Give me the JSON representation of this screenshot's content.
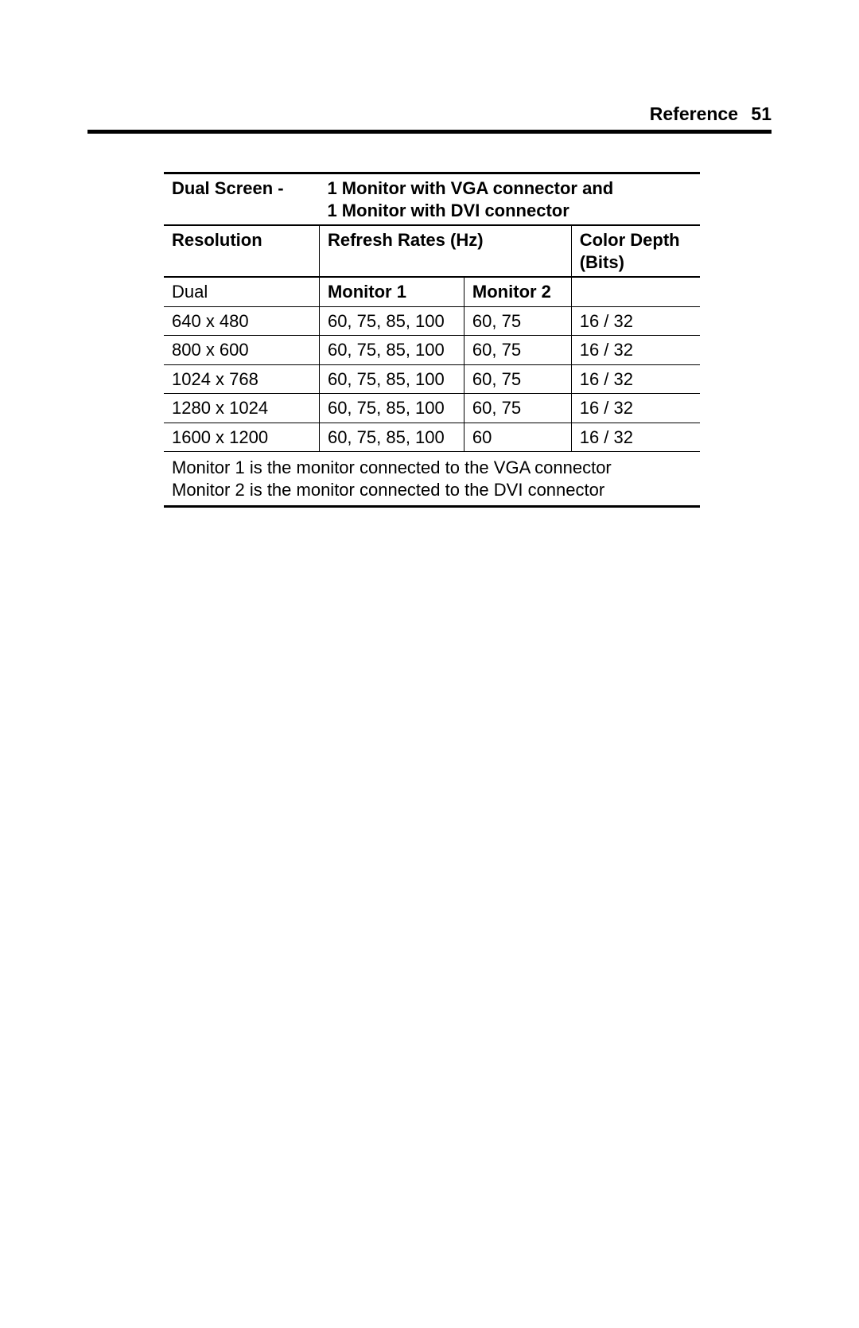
{
  "header": {
    "section": "Reference",
    "page_number": "51"
  },
  "table": {
    "type": "table",
    "title_left": "Dual Screen -",
    "title_right_line1": "1 Monitor with VGA connector and",
    "title_right_line2": "1 Monitor with DVI connector",
    "columns": {
      "resolution": "Resolution",
      "refresh_rates": "Refresh Rates (Hz)",
      "color_depth_line1": "Color Depth",
      "color_depth_line2": "(Bits)"
    },
    "subheader": {
      "dual": "Dual",
      "monitor1": "Monitor 1",
      "monitor2": "Monitor 2"
    },
    "rows": [
      {
        "resolution": "640 x 480",
        "m1": "60, 75, 85, 100",
        "m2": "60, 75",
        "depth": "16 / 32"
      },
      {
        "resolution": "800 x 600",
        "m1": "60, 75, 85, 100",
        "m2": "60, 75",
        "depth": "16 / 32"
      },
      {
        "resolution": "1024 x 768",
        "m1": "60, 75, 85, 100",
        "m2": "60, 75",
        "depth": "16 / 32"
      },
      {
        "resolution": "1280 x 1024",
        "m1": "60, 75, 85, 100",
        "m2": "60, 75",
        "depth": "16 / 32"
      },
      {
        "resolution": "1600 x 1200",
        "m1": "60, 75, 85, 100",
        "m2": "60",
        "depth": "16 / 32"
      }
    ],
    "footnote1": "Monitor 1 is the monitor connected to the VGA connector",
    "footnote2": "Monitor 2 is the monitor connected to the DVI connector",
    "column_widths_pct": [
      29,
      27,
      20,
      24
    ],
    "border_color": "#000000",
    "background_color": "#ffffff",
    "font_size_pt": 16,
    "header_font_weight": "bold"
  }
}
